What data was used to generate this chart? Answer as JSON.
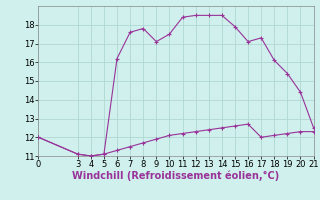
{
  "title": "Windchill (Refroidissement éolien,°C)",
  "bg_color": "#cff0ec",
  "grid_color": "#b0d8d4",
  "line_color": "#993399",
  "xlim": [
    0,
    21
  ],
  "ylim": [
    11,
    19
  ],
  "xticks": [
    0,
    3,
    4,
    5,
    6,
    7,
    8,
    9,
    10,
    11,
    12,
    13,
    14,
    15,
    16,
    17,
    18,
    19,
    20,
    21
  ],
  "yticks": [
    11,
    12,
    13,
    14,
    15,
    16,
    17,
    18
  ],
  "upper_x": [
    0,
    3,
    4,
    5,
    6,
    7,
    8,
    9,
    10,
    11,
    12,
    13,
    14,
    15,
    16,
    17,
    18,
    19,
    20,
    21
  ],
  "upper_y": [
    12.0,
    11.1,
    11.0,
    11.1,
    16.2,
    17.6,
    17.8,
    17.1,
    17.5,
    18.4,
    18.5,
    18.5,
    18.5,
    17.9,
    17.1,
    17.3,
    16.1,
    15.4,
    14.4,
    12.5
  ],
  "lower_x": [
    0,
    3,
    4,
    5,
    6,
    7,
    8,
    9,
    10,
    11,
    12,
    13,
    14,
    15,
    16,
    17,
    18,
    19,
    20,
    21
  ],
  "lower_y": [
    12.0,
    11.1,
    11.0,
    11.1,
    11.3,
    11.5,
    11.7,
    11.9,
    12.1,
    12.2,
    12.3,
    12.4,
    12.5,
    12.6,
    12.7,
    12.0,
    12.1,
    12.2,
    12.3,
    12.3
  ],
  "tick_fontsize": 6,
  "xlabel_fontsize": 7,
  "linewidth": 0.8,
  "markersize": 3
}
